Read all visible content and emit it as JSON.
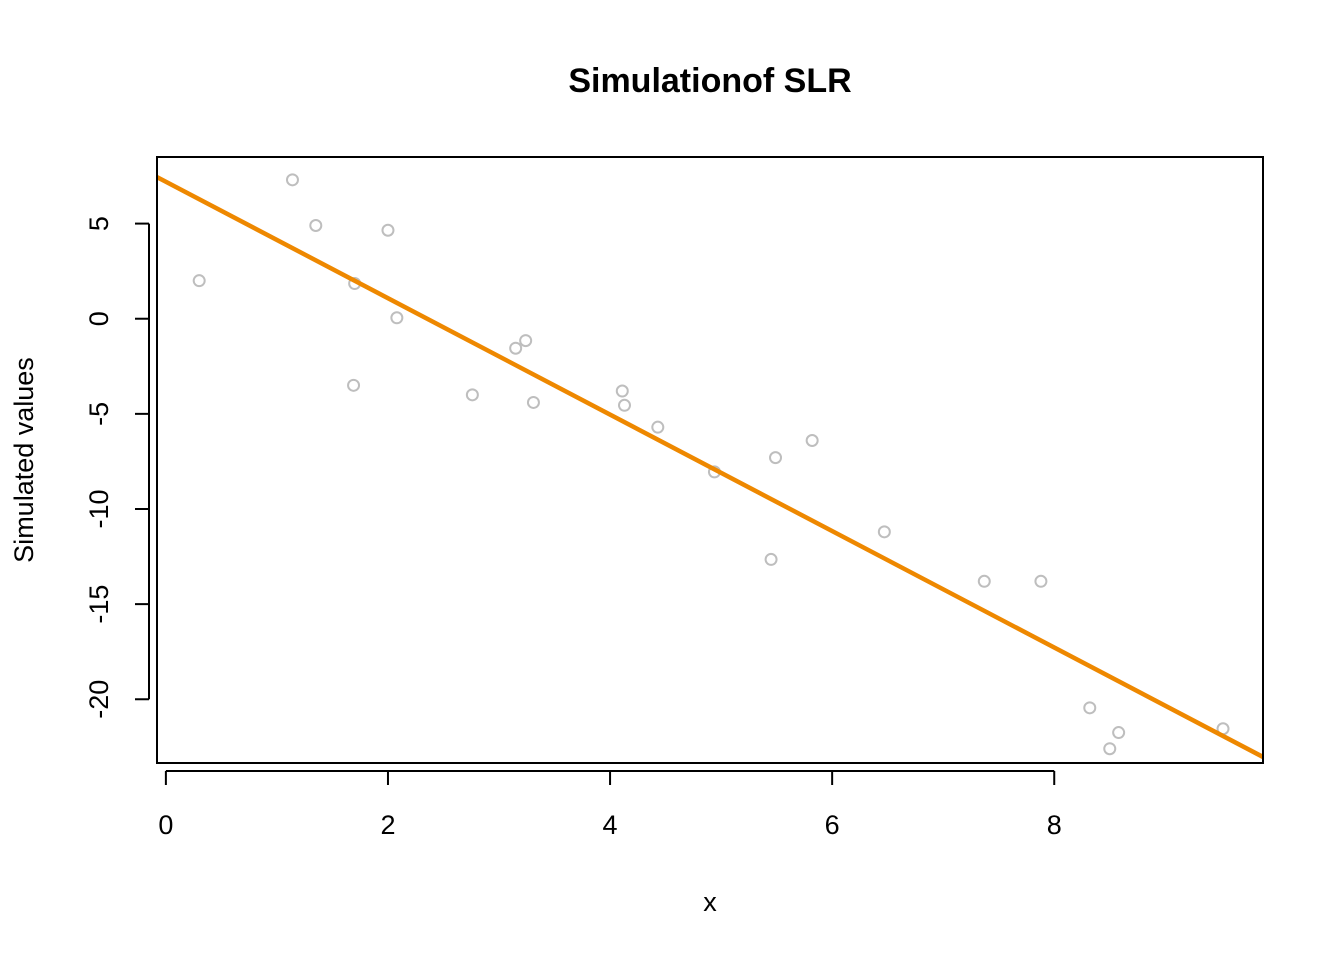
{
  "chart_data": {
    "type": "scatter",
    "title": "Simulationof SLR",
    "xlabel": "x",
    "ylabel": "Simulated values",
    "xlim": [
      -0.08,
      9.88
    ],
    "ylim": [
      -23.35,
      8.5
    ],
    "x_ticks": [
      0,
      2,
      4,
      6,
      8
    ],
    "x_tick_labels": [
      "0",
      "2",
      "4",
      "6",
      "8"
    ],
    "y_ticks": [
      -20,
      -15,
      -10,
      -5,
      0,
      5
    ],
    "y_tick_labels": [
      "-20",
      "-15",
      "-10",
      "-5",
      "0",
      "5"
    ],
    "grid": false,
    "legend": "none",
    "series": [
      {
        "kind": "points",
        "color": "#bebebe",
        "points": [
          {
            "x": 0.3,
            "y": 2.0
          },
          {
            "x": 1.14,
            "y": 7.3
          },
          {
            "x": 1.35,
            "y": 4.9
          },
          {
            "x": 1.7,
            "y": 1.85
          },
          {
            "x": 1.69,
            "y": -3.5
          },
          {
            "x": 2.0,
            "y": 4.65
          },
          {
            "x": 2.08,
            "y": 0.05
          },
          {
            "x": 2.76,
            "y": -4.0
          },
          {
            "x": 3.15,
            "y": -1.55
          },
          {
            "x": 3.24,
            "y": -1.15
          },
          {
            "x": 3.31,
            "y": -4.4
          },
          {
            "x": 4.11,
            "y": -3.8
          },
          {
            "x": 4.13,
            "y": -4.55
          },
          {
            "x": 4.43,
            "y": -5.7
          },
          {
            "x": 4.94,
            "y": -8.05
          },
          {
            "x": 5.45,
            "y": -12.65
          },
          {
            "x": 5.49,
            "y": -7.3
          },
          {
            "x": 5.82,
            "y": -6.4
          },
          {
            "x": 6.47,
            "y": -11.2
          },
          {
            "x": 7.37,
            "y": -13.8
          },
          {
            "x": 7.88,
            "y": -13.8
          },
          {
            "x": 8.32,
            "y": -20.45
          },
          {
            "x": 8.5,
            "y": -22.6
          },
          {
            "x": 8.58,
            "y": -21.75
          },
          {
            "x": 9.52,
            "y": -21.55
          }
        ]
      },
      {
        "kind": "regression-line",
        "color": "#ee8800",
        "intercept": 7.2,
        "slope": -3.06
      }
    ]
  }
}
